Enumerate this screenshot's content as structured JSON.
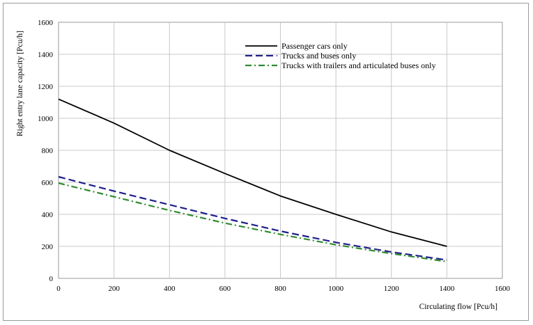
{
  "chart_data": {
    "type": "line",
    "title": "",
    "xlabel": "Circulating flow  [Pcu/h]",
    "ylabel": "Right entry lane capacity  [Pcu/h]",
    "xlim": [
      0,
      1600
    ],
    "ylim": [
      0,
      1600
    ],
    "xticks": [
      0,
      200,
      400,
      600,
      800,
      1000,
      1200,
      1400,
      1600
    ],
    "yticks": [
      0,
      200,
      400,
      600,
      800,
      1000,
      1200,
      1400,
      1600
    ],
    "grid": true,
    "legend_position": "top-right",
    "series": [
      {
        "name": "Passenger cars only",
        "color": "#000000",
        "style": "solid",
        "x": [
          0,
          200,
          400,
          600,
          800,
          1000,
          1200,
          1400
        ],
        "y": [
          1120,
          970,
          800,
          655,
          515,
          400,
          290,
          200
        ]
      },
      {
        "name": "Trucks and buses only",
        "color": "#1f1f8c",
        "style": "dashed",
        "x": [
          0,
          200,
          400,
          600,
          800,
          1000,
          1200,
          1400
        ],
        "y": [
          635,
          545,
          460,
          375,
          295,
          225,
          165,
          115
        ]
      },
      {
        "name": "Trucks with trailers and articulated buses only",
        "color": "#2e8b2e",
        "style": "dashdot",
        "x": [
          0,
          200,
          400,
          600,
          800,
          1000,
          1200,
          1400
        ],
        "y": [
          595,
          510,
          425,
          345,
          275,
          210,
          155,
          105
        ]
      }
    ]
  }
}
